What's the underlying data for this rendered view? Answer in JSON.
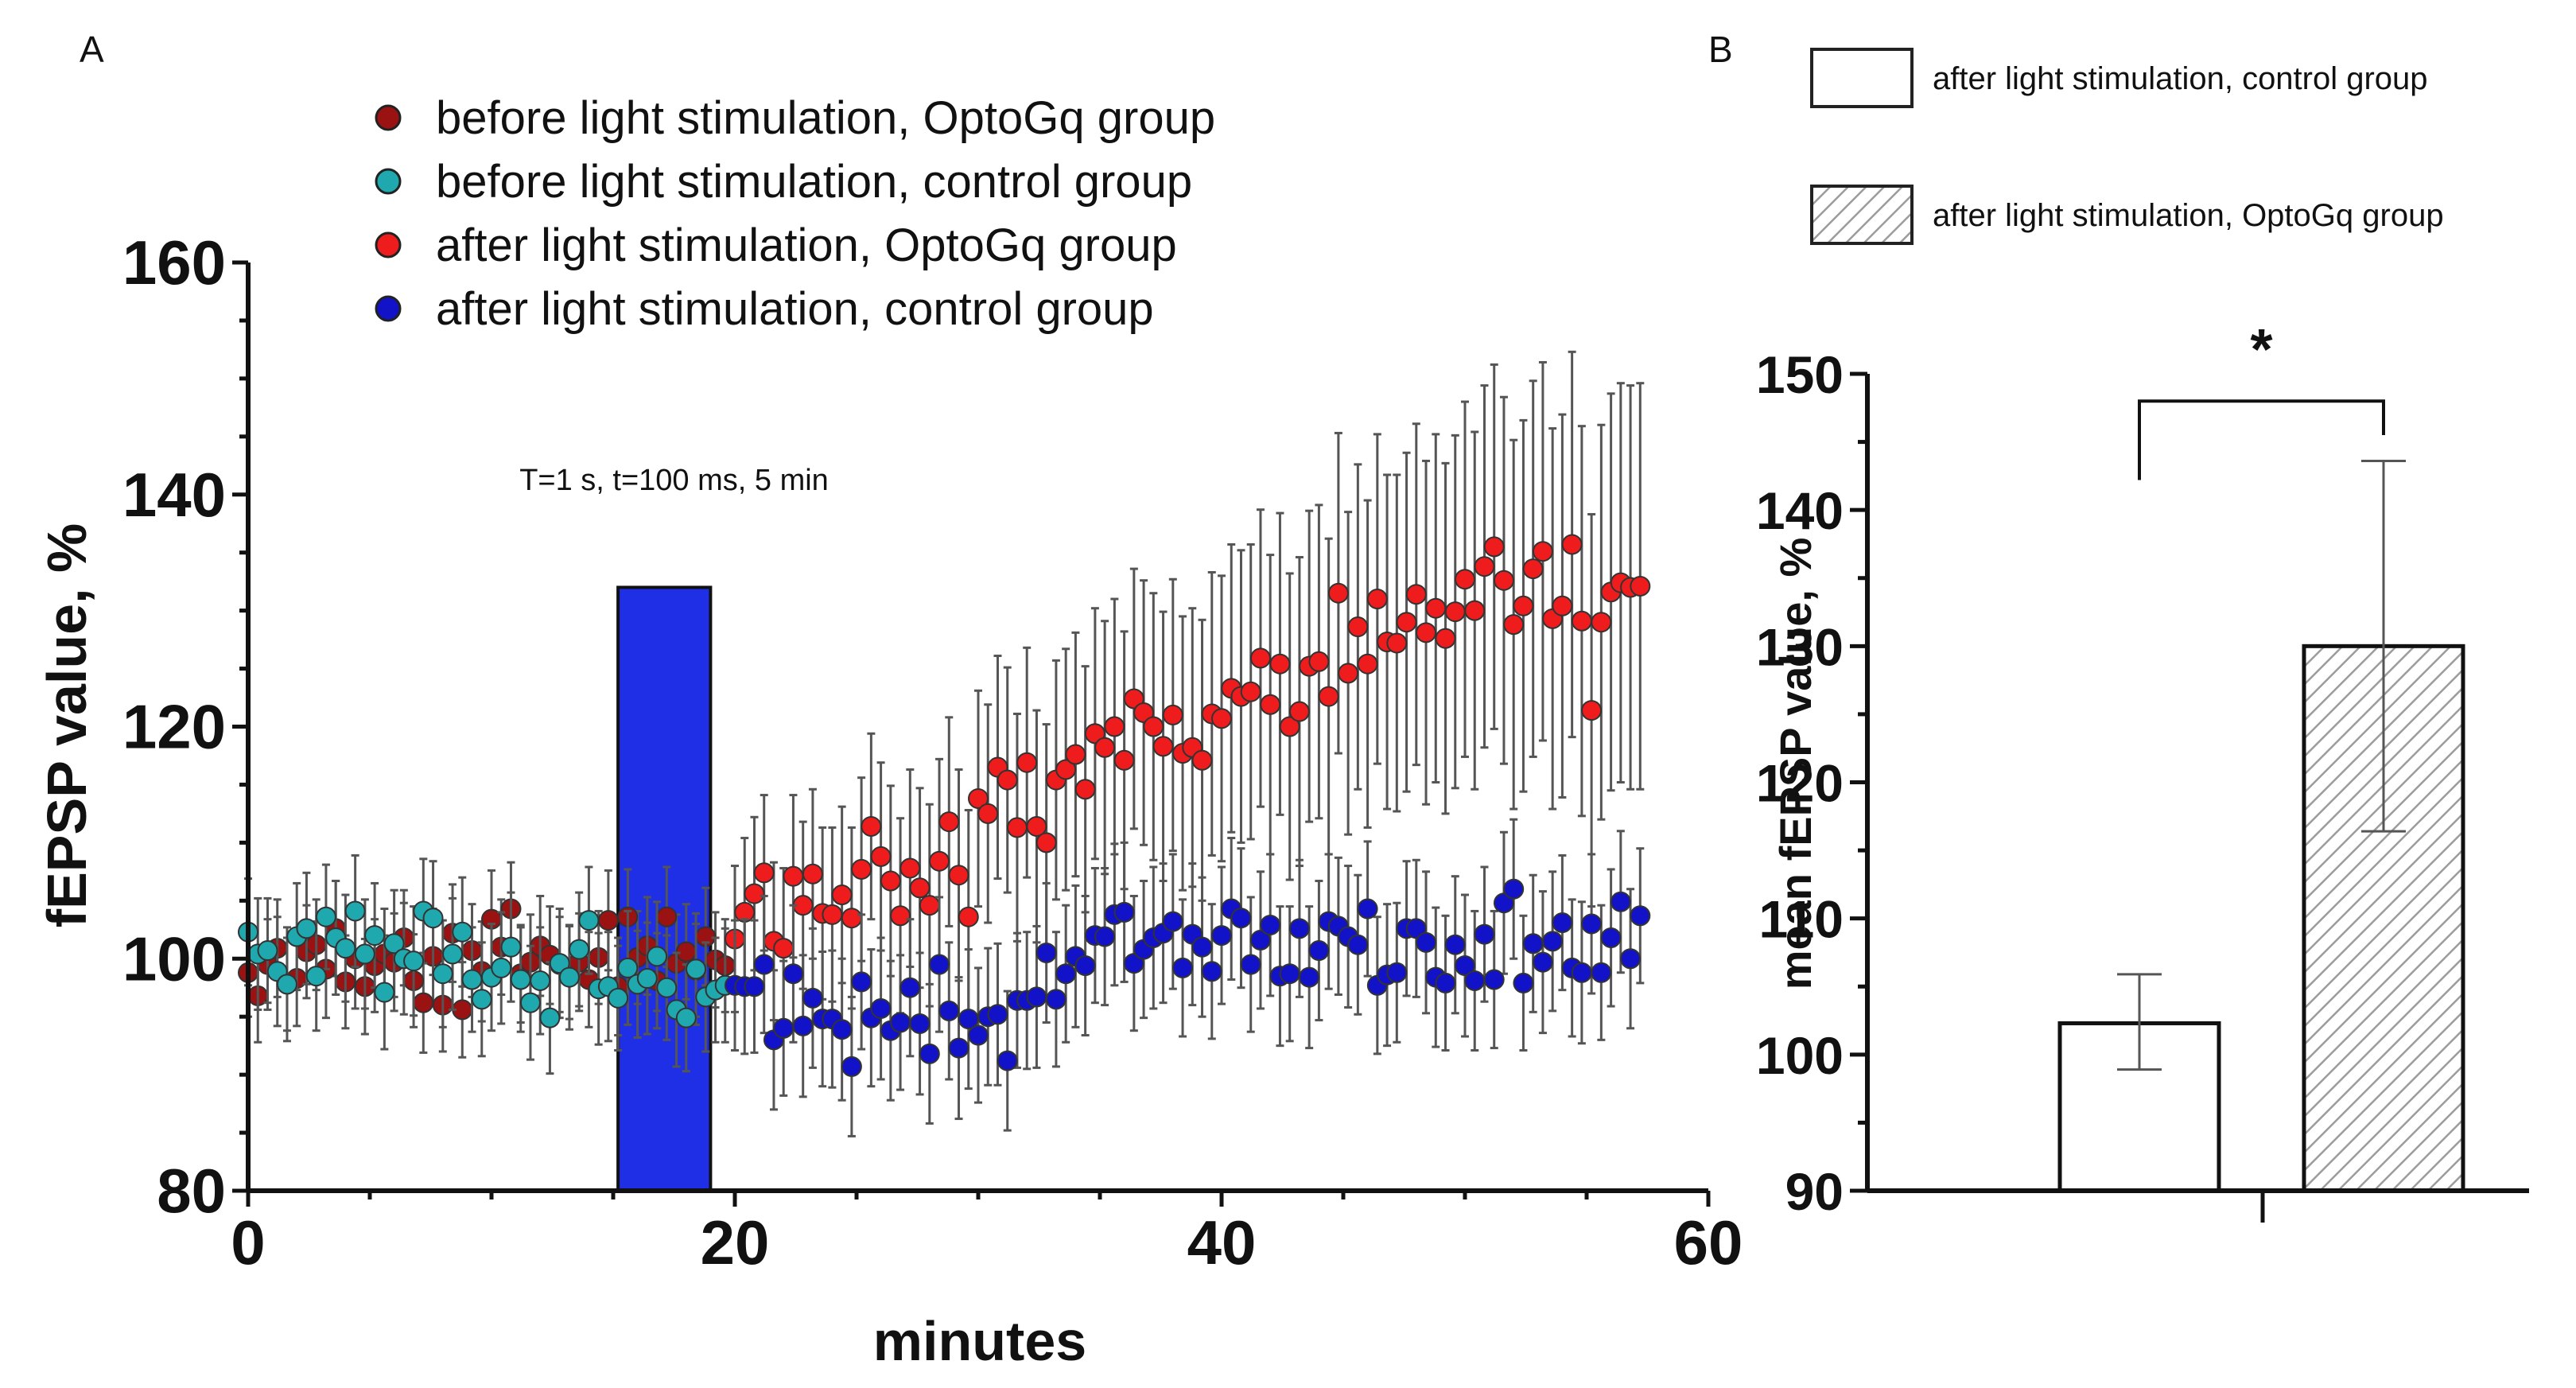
{
  "panel_a_label": "A",
  "panel_b_label": "B",
  "chart_data": [
    {
      "type": "scatter",
      "panel": "A",
      "title": "",
      "xlabel": "minutes",
      "ylabel": "fEPSP value, %",
      "xlim": [
        0,
        60
      ],
      "ylim": [
        80,
        160
      ],
      "xticks": [
        0,
        20,
        40,
        60
      ],
      "yticks": [
        80,
        100,
        120,
        140,
        160
      ],
      "x_minor_step": 5,
      "y_minor_step": 5,
      "grid": false,
      "legend_position": "top-center",
      "annotation": "T=1 s, t=100 ms, 5 min",
      "stimulation_bar": {
        "x_start": 15.2,
        "x_end": 19.0,
        "top": 132,
        "color": "#1f2fe6"
      },
      "series": [
        {
          "name": "before light stimulation, OptoGq group",
          "color": "#9b1212",
          "x": [
            0,
            0.4,
            0.8,
            1.2,
            1.6,
            2.0,
            2.4,
            2.8,
            3.2,
            3.6,
            4.0,
            4.4,
            4.8,
            5.2,
            5.6,
            6.0,
            6.4,
            6.8,
            7.2,
            7.6,
            8.0,
            8.4,
            8.8,
            9.2,
            9.6,
            10.0,
            10.4,
            10.8,
            11.2,
            11.6,
            12.0,
            12.4,
            12.8,
            13.2,
            13.6,
            14.0,
            14.4,
            14.8,
            15.2,
            15.6,
            16.0,
            16.4,
            16.8,
            17.2,
            17.6,
            18.0,
            18.4,
            18.8,
            19.2,
            19.6
          ],
          "y": [
            98.8,
            96.8,
            99.5,
            100.9,
            97.8,
            98.3,
            100.6,
            101.2,
            99.1,
            102.6,
            98.0,
            100.0,
            97.6,
            99.4,
            100.4,
            99.7,
            101.8,
            98.1,
            96.2,
            100.2,
            96.0,
            102.2,
            95.6,
            100.7,
            98.9,
            103.4,
            101.0,
            104.3,
            98.7,
            99.7,
            101.1,
            100.3,
            99.5,
            98.8,
            99.7,
            98.2,
            100.1,
            103.3,
            97.6,
            103.6,
            100.1,
            101.1,
            98.1,
            103.6,
            99.6,
            100.6,
            99.0,
            101.9,
            99.9,
            99.4
          ],
          "err": [
            3.8,
            4.0,
            3.9,
            4.2,
            4.0,
            4.1,
            4.0,
            3.9,
            4.2,
            4.1,
            4.0,
            4.3,
            4.1,
            4.0,
            3.9,
            4.2,
            4.1,
            4.0,
            4.3,
            4.1,
            4.0,
            4.2,
            4.1,
            4.0,
            4.3,
            4.2,
            4.1,
            4.0,
            4.2,
            4.1,
            4.3,
            4.2,
            4.1,
            4.0,
            4.2,
            4.1,
            4.0,
            4.3,
            4.2,
            4.1,
            4.0,
            4.2,
            4.1,
            4.3,
            4.2,
            4.1,
            4.0,
            4.2,
            4.1,
            4.0
          ]
        },
        {
          "name": "before light stimulation, control group",
          "color": "#1fa8ad",
          "x": [
            0,
            0.4,
            0.8,
            1.2,
            1.6,
            2.0,
            2.4,
            2.8,
            3.2,
            3.6,
            4.0,
            4.4,
            4.8,
            5.2,
            5.6,
            6.0,
            6.4,
            6.8,
            7.2,
            7.6,
            8.0,
            8.4,
            8.8,
            9.2,
            9.6,
            10.0,
            10.4,
            10.8,
            11.2,
            11.6,
            12.0,
            12.4,
            12.8,
            13.2,
            13.6,
            14.0,
            14.4,
            14.8,
            15.2,
            15.6,
            16.0,
            16.4,
            16.8,
            17.2,
            17.6,
            18.0,
            18.4,
            18.8,
            19.2,
            19.6
          ],
          "y": [
            102.3,
            100.4,
            100.7,
            98.9,
            97.8,
            101.9,
            102.6,
            98.5,
            103.6,
            101.8,
            100.9,
            104.1,
            100.4,
            102.0,
            97.1,
            101.3,
            100.0,
            99.8,
            104.1,
            103.5,
            98.7,
            100.4,
            102.3,
            98.2,
            96.5,
            98.4,
            99.2,
            101.0,
            98.2,
            96.2,
            98.1,
            94.9,
            99.6,
            98.4,
            100.8,
            103.3,
            97.4,
            97.6,
            96.6,
            99.2,
            97.8,
            98.3,
            100.2,
            97.5,
            95.6,
            94.9,
            99.1,
            96.7,
            97.3,
            97.7
          ],
          "err": [
            4.6,
            4.8,
            4.5,
            4.7,
            4.9,
            4.6,
            4.8,
            4.7,
            4.5,
            4.9,
            4.6,
            4.8,
            4.7,
            4.5,
            4.9,
            4.6,
            4.8,
            4.7,
            4.5,
            4.9,
            4.6,
            4.8,
            4.7,
            4.5,
            4.9,
            4.6,
            4.8,
            4.7,
            4.5,
            4.9,
            4.6,
            4.8,
            4.7,
            4.5,
            4.9,
            4.6,
            4.8,
            4.7,
            4.5,
            4.9,
            4.6,
            4.8,
            4.7,
            4.5,
            4.9,
            4.6,
            4.8,
            4.7,
            4.5,
            4.9
          ]
        },
        {
          "name": "after light stimulation, OptoGq group",
          "color": "#ee1c1c",
          "x": [
            20.0,
            20.4,
            20.8,
            21.2,
            21.6,
            22.0,
            22.4,
            22.8,
            23.2,
            23.6,
            24.0,
            24.4,
            24.8,
            25.2,
            25.6,
            26.0,
            26.4,
            26.8,
            27.2,
            27.6,
            28.0,
            28.4,
            28.8,
            29.2,
            29.6,
            30.0,
            30.4,
            30.8,
            31.2,
            31.6,
            32.0,
            32.4,
            32.8,
            33.2,
            33.6,
            34.0,
            34.4,
            34.8,
            35.2,
            35.6,
            36.0,
            36.4,
            36.8,
            37.2,
            37.6,
            38.0,
            38.4,
            38.8,
            39.2,
            39.6,
            40.0,
            40.4,
            40.8,
            41.2,
            41.6,
            42.0,
            42.4,
            42.8,
            43.2,
            43.6,
            44.0,
            44.4,
            44.8,
            45.2,
            45.6,
            46.0,
            46.4,
            46.8,
            47.2,
            47.6,
            48.0,
            48.4,
            48.8,
            49.2,
            49.6,
            50.0,
            50.4,
            50.8,
            51.2,
            51.6,
            52.0,
            52.4,
            52.8,
            53.2,
            53.6,
            54.0,
            54.4,
            54.8,
            55.2,
            55.6,
            56.0,
            56.4,
            56.8,
            57.2
          ],
          "y": [
            101.7,
            104.0,
            105.6,
            107.4,
            101.5,
            100.9,
            107.1,
            104.6,
            107.3,
            103.9,
            103.8,
            105.5,
            103.5,
            107.7,
            111.4,
            108.8,
            106.7,
            103.7,
            107.8,
            106.1,
            104.6,
            108.4,
            111.8,
            107.2,
            103.6,
            113.8,
            112.5,
            116.5,
            115.4,
            111.3,
            116.9,
            111.4,
            110.0,
            115.4,
            116.3,
            117.6,
            114.6,
            119.4,
            118.2,
            120.0,
            117.1,
            122.4,
            121.2,
            120.0,
            118.3,
            121.0,
            117.7,
            118.2,
            117.1,
            121.1,
            120.7,
            123.3,
            122.6,
            123.0,
            125.9,
            121.9,
            125.4,
            120.0,
            121.3,
            125.2,
            125.6,
            122.6,
            131.5,
            124.6,
            128.6,
            125.4,
            131.0,
            127.3,
            127.2,
            129.0,
            131.4,
            128.1,
            130.2,
            127.6,
            129.9,
            132.7,
            130.0,
            133.8,
            135.5,
            132.6,
            128.8,
            130.4,
            133.6,
            135.1,
            129.3,
            130.4,
            135.7,
            129.1,
            121.4,
            129.0,
            131.6,
            132.4,
            132.0,
            132.1
          ],
          "err": [
            6.3,
            6.4,
            6.6,
            6.7,
            6.8,
            6.9,
            7.0,
            7.2,
            7.3,
            7.4,
            7.5,
            7.6,
            7.8,
            7.9,
            8.0,
            8.1,
            8.2,
            8.4,
            8.5,
            8.6,
            8.7,
            8.8,
            9.0,
            9.1,
            9.2,
            9.3,
            9.4,
            9.6,
            9.7,
            9.8,
            9.9,
            10.0,
            10.2,
            10.3,
            10.4,
            10.5,
            10.6,
            10.8,
            10.9,
            11.0,
            11.1,
            11.2,
            11.4,
            11.5,
            11.6,
            11.7,
            11.8,
            12.0,
            12.1,
            12.2,
            12.3,
            12.4,
            12.6,
            12.7,
            12.8,
            12.9,
            13.0,
            13.2,
            13.3,
            13.4,
            13.5,
            13.6,
            13.8,
            13.9,
            14.0,
            14.1,
            14.2,
            14.4,
            14.5,
            14.6,
            14.7,
            14.8,
            15.0,
            15.1,
            15.2,
            15.3,
            15.4,
            15.6,
            15.7,
            15.8,
            15.9,
            16.0,
            16.2,
            16.3,
            16.4,
            16.5,
            16.6,
            16.8,
            16.9,
            17.0,
            17.1,
            17.2,
            17.4,
            17.5
          ]
        },
        {
          "name": "after light stimulation, control group",
          "color": "#1212c8",
          "x": [
            20.0,
            20.4,
            20.8,
            21.2,
            21.6,
            22.0,
            22.4,
            22.8,
            23.2,
            23.6,
            24.0,
            24.4,
            24.8,
            25.2,
            25.6,
            26.0,
            26.4,
            26.8,
            27.2,
            27.6,
            28.0,
            28.4,
            28.8,
            29.2,
            29.6,
            30.0,
            30.4,
            30.8,
            31.2,
            31.6,
            32.0,
            32.4,
            32.8,
            33.2,
            33.6,
            34.0,
            34.4,
            34.8,
            35.2,
            35.6,
            36.0,
            36.4,
            36.8,
            37.2,
            37.6,
            38.0,
            38.4,
            38.8,
            39.2,
            39.6,
            40.0,
            40.4,
            40.8,
            41.2,
            41.6,
            42.0,
            42.4,
            42.8,
            43.2,
            43.6,
            44.0,
            44.4,
            44.8,
            45.2,
            45.6,
            46.0,
            46.4,
            46.8,
            47.2,
            47.6,
            48.0,
            48.4,
            48.8,
            49.2,
            49.6,
            50.0,
            50.4,
            50.8,
            51.2,
            51.6,
            52.0,
            52.4,
            52.8,
            53.2,
            53.6,
            54.0,
            54.4,
            54.8,
            55.2,
            55.6,
            56.0,
            56.4,
            56.8,
            57.2
          ],
          "y": [
            97.7,
            97.6,
            97.6,
            99.5,
            93.0,
            94.0,
            98.7,
            94.2,
            96.6,
            94.8,
            94.8,
            93.9,
            90.7,
            98.0,
            94.9,
            95.7,
            93.8,
            94.5,
            97.5,
            94.4,
            91.8,
            99.5,
            95.5,
            92.3,
            94.8,
            93.4,
            95.0,
            95.2,
            91.2,
            96.4,
            96.4,
            96.7,
            100.5,
            96.5,
            98.7,
            100.2,
            99.4,
            102.0,
            101.9,
            103.8,
            104.0,
            99.6,
            100.8,
            101.8,
            102.2,
            103.2,
            99.2,
            102.1,
            101.0,
            98.9,
            102.0,
            104.3,
            103.5,
            99.5,
            101.6,
            102.9,
            98.5,
            98.7,
            102.6,
            98.4,
            100.7,
            103.2,
            102.8,
            101.9,
            101.2,
            104.3,
            97.7,
            98.6,
            98.8,
            102.6,
            102.6,
            101.4,
            98.4,
            97.9,
            101.2,
            99.4,
            98.1,
            102.1,
            98.2,
            104.8,
            106.0,
            97.9,
            101.3,
            99.7,
            101.5,
            103.1,
            99.2,
            98.8,
            103.0,
            98.8,
            101.8,
            104.9,
            100.0,
            103.7
          ],
          "err": [
            5.6,
            5.8,
            5.7,
            5.9,
            6.0,
            5.8,
            5.9,
            6.1,
            6.0,
            5.8,
            5.9,
            6.1,
            6.0,
            5.8,
            5.9,
            6.1,
            6.0,
            5.8,
            5.9,
            6.1,
            6.0,
            5.8,
            5.9,
            6.1,
            6.0,
            5.8,
            5.9,
            6.1,
            6.0,
            5.8,
            5.9,
            6.1,
            6.0,
            5.8,
            5.9,
            6.1,
            6.0,
            5.8,
            5.9,
            6.1,
            6.0,
            5.8,
            5.9,
            6.1,
            6.0,
            5.8,
            5.9,
            6.1,
            6.0,
            5.8,
            5.9,
            6.1,
            6.0,
            5.8,
            5.9,
            6.1,
            6.0,
            5.8,
            5.9,
            6.1,
            6.0,
            5.8,
            5.9,
            6.1,
            6.0,
            5.8,
            5.9,
            6.1,
            6.0,
            5.8,
            5.9,
            6.1,
            6.0,
            5.8,
            5.9,
            6.1,
            6.0,
            5.8,
            5.9,
            6.1,
            6.0,
            5.8,
            5.9,
            6.1,
            6.0,
            5.8,
            5.9,
            6.1,
            6.0,
            5.8,
            5.9,
            6.1,
            6.0,
            5.8
          ]
        }
      ]
    },
    {
      "type": "bar",
      "panel": "B",
      "title": "",
      "xlabel": "",
      "ylabel": "mean fEPSP value, %",
      "ylim": [
        90,
        150
      ],
      "yticks": [
        90,
        100,
        110,
        120,
        130,
        140,
        150
      ],
      "y_minor_step": 5,
      "grid": false,
      "legend_position": "top",
      "categories": [
        "after light stimulation, control group",
        "after light stimulation, OptoGq group"
      ],
      "values": [
        102.3,
        130.0
      ],
      "err_low": [
        3.4,
        13.6
      ],
      "err_high": [
        3.6,
        13.6
      ],
      "fills": [
        "white",
        "hatched"
      ],
      "significance": {
        "between": [
          0,
          1
        ],
        "label": "*"
      }
    }
  ]
}
